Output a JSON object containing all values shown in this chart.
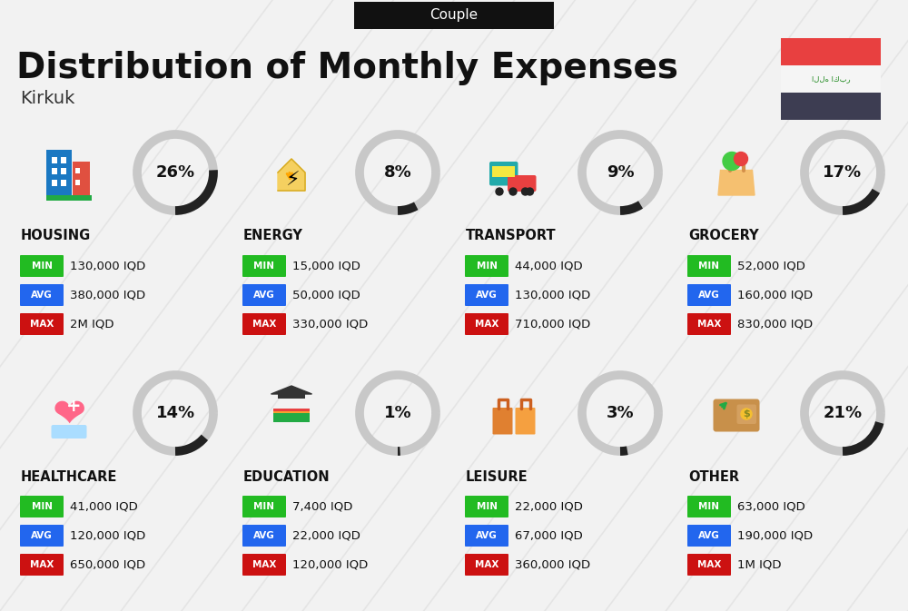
{
  "title": "Distribution of Monthly Expenses",
  "subtitle": "Couple",
  "location": "Kirkuk",
  "bg_color": "#f2f2f2",
  "categories": [
    {
      "name": "HOUSING",
      "pct": 26,
      "min": "130,000 IQD",
      "avg": "380,000 IQD",
      "max": "2M IQD",
      "col": 0,
      "row": 0
    },
    {
      "name": "ENERGY",
      "pct": 8,
      "min": "15,000 IQD",
      "avg": "50,000 IQD",
      "max": "330,000 IQD",
      "col": 1,
      "row": 0
    },
    {
      "name": "TRANSPORT",
      "pct": 9,
      "min": "44,000 IQD",
      "avg": "130,000 IQD",
      "max": "710,000 IQD",
      "col": 2,
      "row": 0
    },
    {
      "name": "GROCERY",
      "pct": 17,
      "min": "52,000 IQD",
      "avg": "160,000 IQD",
      "max": "830,000 IQD",
      "col": 3,
      "row": 0
    },
    {
      "name": "HEALTHCARE",
      "pct": 14,
      "min": "41,000 IQD",
      "avg": "120,000 IQD",
      "max": "650,000 IQD",
      "col": 0,
      "row": 1
    },
    {
      "name": "EDUCATION",
      "pct": 1,
      "min": "7,400 IQD",
      "avg": "22,000 IQD",
      "max": "120,000 IQD",
      "col": 1,
      "row": 1
    },
    {
      "name": "LEISURE",
      "pct": 3,
      "min": "22,000 IQD",
      "avg": "67,000 IQD",
      "max": "360,000 IQD",
      "col": 2,
      "row": 1
    },
    {
      "name": "OTHER",
      "pct": 21,
      "min": "63,000 IQD",
      "avg": "190,000 IQD",
      "max": "1M IQD",
      "col": 3,
      "row": 1
    }
  ],
  "color_badge_min": "#22bb22",
  "color_badge_avg": "#2266ee",
  "color_badge_max": "#cc1111",
  "arc_color": "#222222",
  "arc_bg": "#c8c8c8",
  "flag_red": "#e84040",
  "flag_white": "#f5f5f5",
  "flag_dark": "#3d3d52",
  "diag_color": "#d8d8d8"
}
